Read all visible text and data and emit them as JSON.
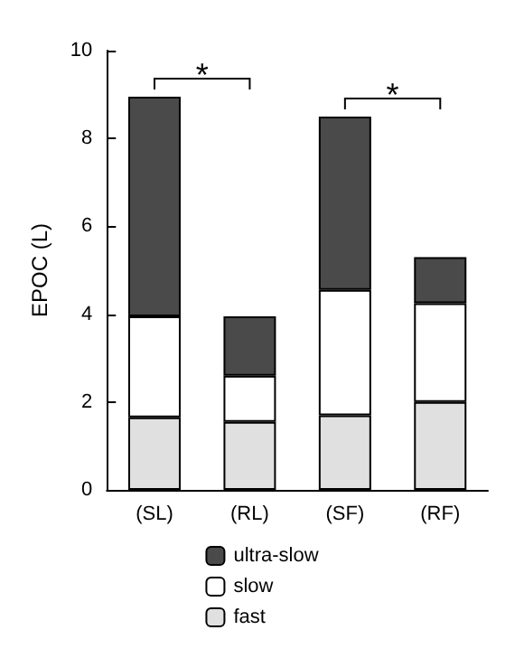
{
  "chart_data": {
    "type": "bar",
    "stacked": true,
    "ylabel": "EPOC (L)",
    "categories": [
      "(SL)",
      "(RL)",
      "(SF)",
      "(RF)"
    ],
    "series": [
      {
        "name": "fast",
        "color": "#e0e0e0",
        "values": [
          1.65,
          1.55,
          1.7,
          2.0
        ]
      },
      {
        "name": "slow",
        "color": "#ffffff",
        "values": [
          2.3,
          1.05,
          2.85,
          2.25
        ]
      },
      {
        "name": "ultra-slow",
        "color": "#4a4a4a",
        "values": [
          5.0,
          1.35,
          3.95,
          1.05
        ]
      }
    ],
    "ylim": [
      0,
      10
    ],
    "yticks": [
      0,
      2,
      4,
      6,
      8,
      10
    ],
    "grid": false,
    "legend": "bottom",
    "annotations": [
      "*",
      "*"
    ]
  }
}
